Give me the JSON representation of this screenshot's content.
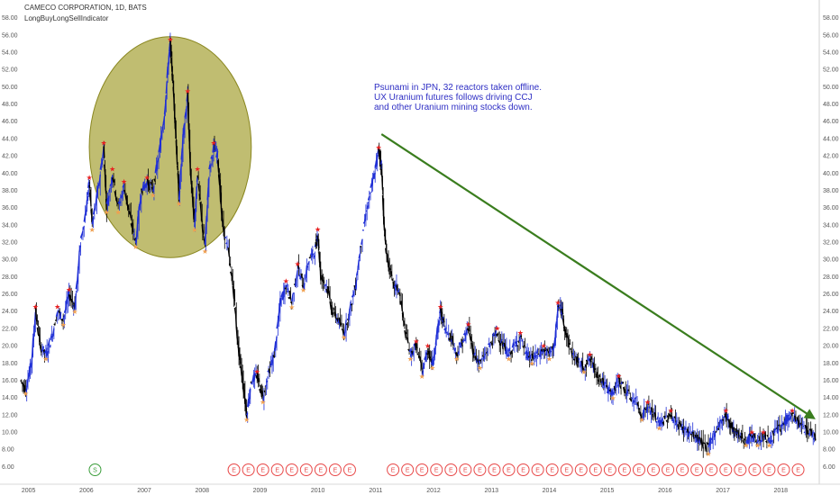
{
  "header": {
    "symbol": "CAMECO CORPORATION, 1D, BATS",
    "indicator": "LongBuyLongSellIndicator"
  },
  "annotation": {
    "lines": [
      "Psunami in JPN, 32 reactors taken offline.",
      "UX Uranium futures follows driving CCJ",
      "and other Uranium mining stocks down."
    ]
  },
  "colors": {
    "price_up": "#1f2fd6",
    "price_down": "#000000",
    "buy_marker": "#e82020",
    "sell_marker": "#f0a050",
    "circle_fill": "#a8a43a",
    "trend_arrow": "#3a7d1e",
    "earnings_event": "#e84848",
    "split_event": "#3a9d3a"
  },
  "chart_data": {
    "type": "line",
    "title": "CAMECO CORPORATION, 1D, BATS",
    "xlabel": "",
    "ylabel": "",
    "x_ticks": [
      "2005",
      "2006",
      "2007",
      "2008",
      "2009",
      "2010",
      "2011",
      "2012",
      "2013",
      "2014",
      "2015",
      "2016",
      "2017",
      "2018"
    ],
    "y_ticks": [
      "6.00",
      "8.00",
      "10.00",
      "12.00",
      "14.00",
      "16.00",
      "18.00",
      "20.00",
      "22.00",
      "24.00",
      "26.00",
      "28.00",
      "30.00",
      "32.00",
      "34.00",
      "36.00",
      "38.00",
      "40.00",
      "42.00",
      "44.00",
      "46.00",
      "48.00",
      "50.00",
      "52.00",
      "54.00",
      "56.00",
      "58.00"
    ],
    "xlim": [
      2004.85,
      2018.65
    ],
    "ylim": [
      5,
      59
    ],
    "y_axis_position": "both sides",
    "grid": false,
    "series": [
      {
        "points": [
          [
            2004.86,
            16.0
          ],
          [
            2004.95,
            15.0
          ],
          [
            2005.05,
            18.0
          ],
          [
            2005.12,
            24.0
          ],
          [
            2005.2,
            20.0
          ],
          [
            2005.3,
            19.0
          ],
          [
            2005.4,
            21.0
          ],
          [
            2005.5,
            24.0
          ],
          [
            2005.6,
            23.0
          ],
          [
            2005.7,
            26.0
          ],
          [
            2005.8,
            24.5
          ],
          [
            2005.9,
            32.0
          ],
          [
            2006.0,
            36.0
          ],
          [
            2006.05,
            39.0
          ],
          [
            2006.1,
            34.0
          ],
          [
            2006.2,
            38.0
          ],
          [
            2006.3,
            43.0
          ],
          [
            2006.35,
            36.0
          ],
          [
            2006.45,
            40.0
          ],
          [
            2006.55,
            36.0
          ],
          [
            2006.65,
            38.5
          ],
          [
            2006.75,
            35.0
          ],
          [
            2006.85,
            32.0
          ],
          [
            2006.95,
            38.0
          ],
          [
            2007.05,
            39.0
          ],
          [
            2007.15,
            38.0
          ],
          [
            2007.25,
            42.0
          ],
          [
            2007.35,
            47.0
          ],
          [
            2007.42,
            53.0
          ],
          [
            2007.45,
            55.0
          ],
          [
            2007.5,
            50.0
          ],
          [
            2007.55,
            44.0
          ],
          [
            2007.6,
            37.0
          ],
          [
            2007.67,
            44.0
          ],
          [
            2007.75,
            49.0
          ],
          [
            2007.8,
            40.0
          ],
          [
            2007.87,
            34.0
          ],
          [
            2007.92,
            40.0
          ],
          [
            2008.0,
            34.0
          ],
          [
            2008.05,
            31.5
          ],
          [
            2008.12,
            40.0
          ],
          [
            2008.2,
            43.0
          ],
          [
            2008.27,
            42.0
          ],
          [
            2008.35,
            34.0
          ],
          [
            2008.45,
            31.0
          ],
          [
            2008.55,
            26.0
          ],
          [
            2008.62,
            20.0
          ],
          [
            2008.7,
            16.0
          ],
          [
            2008.77,
            12.0
          ],
          [
            2008.85,
            16.0
          ],
          [
            2008.95,
            16.5
          ],
          [
            2009.05,
            14.0
          ],
          [
            2009.15,
            17.0
          ],
          [
            2009.25,
            19.0
          ],
          [
            2009.35,
            25.0
          ],
          [
            2009.45,
            27.0
          ],
          [
            2009.55,
            25.0
          ],
          [
            2009.65,
            29.0
          ],
          [
            2009.75,
            27.0
          ],
          [
            2009.85,
            30.0
          ],
          [
            2009.95,
            31.0
          ],
          [
            2010.0,
            33.0
          ],
          [
            2010.05,
            28.0
          ],
          [
            2010.15,
            27.0
          ],
          [
            2010.25,
            24.0
          ],
          [
            2010.35,
            23.0
          ],
          [
            2010.45,
            21.5
          ],
          [
            2010.55,
            24.0
          ],
          [
            2010.65,
            27.0
          ],
          [
            2010.75,
            32.0
          ],
          [
            2010.85,
            36.0
          ],
          [
            2010.95,
            39.0
          ],
          [
            2011.05,
            42.5
          ],
          [
            2011.1,
            41.0
          ],
          [
            2011.15,
            33.0
          ],
          [
            2011.2,
            30.0
          ],
          [
            2011.3,
            27.0
          ],
          [
            2011.4,
            26.5
          ],
          [
            2011.5,
            22.0
          ],
          [
            2011.6,
            19.0
          ],
          [
            2011.7,
            20.0
          ],
          [
            2011.8,
            17.0
          ],
          [
            2011.9,
            19.5
          ],
          [
            2011.98,
            18.0
          ],
          [
            2012.05,
            21.0
          ],
          [
            2012.12,
            24.0
          ],
          [
            2012.2,
            22.0
          ],
          [
            2012.3,
            21.0
          ],
          [
            2012.4,
            19.0
          ],
          [
            2012.5,
            20.5
          ],
          [
            2012.6,
            22.0
          ],
          [
            2012.7,
            19.0
          ],
          [
            2012.8,
            18.0
          ],
          [
            2012.9,
            19.0
          ],
          [
            2013.0,
            20.5
          ],
          [
            2013.1,
            21.5
          ],
          [
            2013.2,
            20.0
          ],
          [
            2013.3,
            19.0
          ],
          [
            2013.4,
            20.0
          ],
          [
            2013.5,
            21.0
          ],
          [
            2013.6,
            19.0
          ],
          [
            2013.7,
            18.5
          ],
          [
            2013.8,
            19.0
          ],
          [
            2013.9,
            19.5
          ],
          [
            2014.0,
            19.0
          ],
          [
            2014.1,
            20.5
          ],
          [
            2014.15,
            24.5
          ],
          [
            2014.22,
            24.0
          ],
          [
            2014.3,
            21.0
          ],
          [
            2014.4,
            19.0
          ],
          [
            2014.5,
            18.0
          ],
          [
            2014.6,
            17.5
          ],
          [
            2014.7,
            18.5
          ],
          [
            2014.8,
            17.0
          ],
          [
            2014.9,
            16.0
          ],
          [
            2015.0,
            15.0
          ],
          [
            2015.1,
            14.5
          ],
          [
            2015.2,
            16.0
          ],
          [
            2015.3,
            15.0
          ],
          [
            2015.4,
            14.0
          ],
          [
            2015.5,
            13.5
          ],
          [
            2015.6,
            12.0
          ],
          [
            2015.7,
            13.0
          ],
          [
            2015.8,
            12.0
          ],
          [
            2015.9,
            11.0
          ],
          [
            2016.0,
            11.5
          ],
          [
            2016.1,
            12.0
          ],
          [
            2016.2,
            11.0
          ],
          [
            2016.3,
            10.5
          ],
          [
            2016.4,
            10.0
          ],
          [
            2016.5,
            9.5
          ],
          [
            2016.6,
            9.0
          ],
          [
            2016.75,
            8.0
          ],
          [
            2016.85,
            10.0
          ],
          [
            2016.95,
            11.0
          ],
          [
            2017.05,
            12.0
          ],
          [
            2017.12,
            11.0
          ],
          [
            2017.2,
            10.0
          ],
          [
            2017.3,
            9.5
          ],
          [
            2017.4,
            9.0
          ],
          [
            2017.5,
            9.5
          ],
          [
            2017.6,
            9.0
          ],
          [
            2017.7,
            9.5
          ],
          [
            2017.8,
            9.0
          ],
          [
            2017.9,
            10.0
          ],
          [
            2018.0,
            10.5
          ],
          [
            2018.1,
            11.5
          ],
          [
            2018.2,
            12.0
          ],
          [
            2018.3,
            11.0
          ],
          [
            2018.4,
            10.5
          ],
          [
            2018.5,
            10.0
          ],
          [
            2018.6,
            9.5
          ]
        ]
      }
    ],
    "overlays": {
      "circle": {
        "center": [
          2007.45,
          43
        ],
        "radius_years": 1.4,
        "radius_units": 12.8
      },
      "trend_arrow": {
        "from": [
          2011.1,
          44.5
        ],
        "to": [
          2018.55,
          11.7
        ]
      },
      "split_events": [
        2006.15
      ],
      "earnings_events": [
        2008.55,
        2008.8,
        2009.05,
        2009.3,
        2009.55,
        2009.8,
        2010.05,
        2010.3,
        2010.55,
        2011.3,
        2011.55,
        2011.8,
        2012.05,
        2012.3,
        2012.55,
        2012.8,
        2013.05,
        2013.3,
        2013.55,
        2013.8,
        2014.05,
        2014.3,
        2014.55,
        2014.8,
        2015.05,
        2015.3,
        2015.55,
        2015.8,
        2016.05,
        2016.3,
        2016.55,
        2016.8,
        2017.05,
        2017.3,
        2017.55,
        2017.8,
        2018.05,
        2018.3
      ]
    }
  }
}
